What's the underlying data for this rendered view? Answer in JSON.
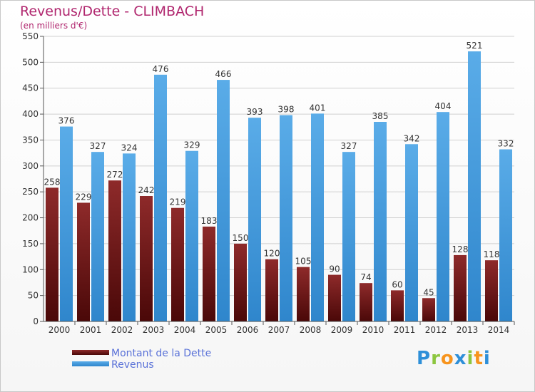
{
  "header": {
    "title": "Revenus/Dette - CLIMBACH",
    "subtitle": "(en milliers d'€)"
  },
  "chart_data": {
    "type": "bar",
    "title": "Revenus/Dette - CLIMBACH",
    "subtitle": "(en milliers d'€)",
    "categories": [
      "2000",
      "2001",
      "2002",
      "2003",
      "2004",
      "2005",
      "2006",
      "2007",
      "2008",
      "2009",
      "2010",
      "2011",
      "2012",
      "2013",
      "2014"
    ],
    "series": [
      {
        "name": "Montant de la Dette",
        "color": "#7a1a1a",
        "values": [
          258,
          229,
          272,
          242,
          219,
          183,
          150,
          120,
          105,
          90,
          74,
          60,
          45,
          128,
          118
        ]
      },
      {
        "name": "Revenus",
        "color": "#4fa3e3",
        "values": [
          376,
          327,
          324,
          476,
          329,
          466,
          393,
          398,
          401,
          327,
          385,
          342,
          404,
          521,
          332
        ]
      }
    ],
    "ylim": [
      0,
      550
    ],
    "yticks": [
      0,
      50,
      100,
      150,
      200,
      250,
      300,
      350,
      400,
      450,
      500,
      550
    ],
    "grid": true,
    "legend_position": "bottom-left"
  },
  "legend": {
    "items": [
      {
        "label": "Montant de la Dette",
        "color": "#7a1a1a"
      },
      {
        "label": "Revenus",
        "color": "#4fa3e3"
      }
    ]
  },
  "logo": {
    "text": "Proxiti",
    "letters": [
      {
        "ch": "P",
        "color": "#2e8fd8"
      },
      {
        "ch": "r",
        "color": "#8cc63f"
      },
      {
        "ch": "o",
        "color": "#f7941d"
      },
      {
        "ch": "x",
        "color": "#2e8fd8"
      },
      {
        "ch": "i",
        "color": "#8cc63f"
      },
      {
        "ch": "t",
        "color": "#f7941d"
      },
      {
        "ch": "i",
        "color": "#2e8fd8"
      }
    ]
  }
}
